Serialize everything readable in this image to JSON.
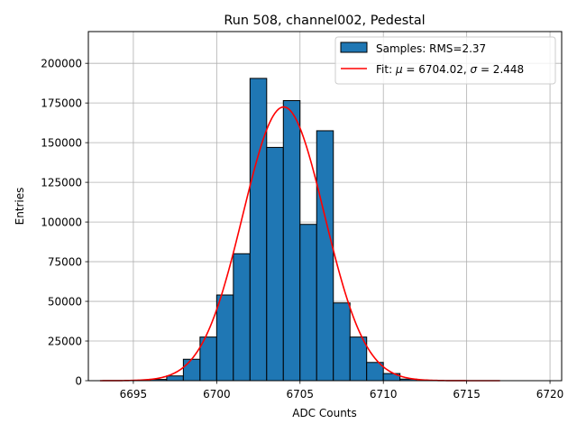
{
  "chart_data": {
    "type": "bar",
    "title": "Run 508, channel002, Pedestal",
    "xlabel": "ADC Counts",
    "ylabel": "Entries",
    "xlim": [
      6692.3,
      6720.7
    ],
    "ylim": [
      0,
      220000
    ],
    "grid": true,
    "legend_position": "top-right",
    "x_ticks": [
      6695,
      6700,
      6705,
      6710,
      6715,
      6720
    ],
    "y_ticks": [
      0,
      25000,
      50000,
      75000,
      100000,
      125000,
      150000,
      175000,
      200000
    ],
    "histogram": {
      "name": "Samples: RMS=2.37",
      "color": "#1f77b4",
      "edgecolor": "#000000",
      "bin_width": 1,
      "bin_starts": [
        6696,
        6697,
        6698,
        6699,
        6700,
        6701,
        6702,
        6703,
        6704,
        6705,
        6706,
        6707,
        6708,
        6709,
        6710,
        6711
      ],
      "counts": [
        800,
        3000,
        13500,
        27500,
        54000,
        80000,
        190500,
        147000,
        176500,
        98500,
        157500,
        49000,
        27500,
        11500,
        4500,
        1000
      ]
    },
    "fit": {
      "name_prefix": "Fit: ",
      "name_suffix": " = 6704.02, ",
      "name_suffix2": " = 2.448",
      "mu_symbol": "μ",
      "sigma_symbol": "σ",
      "color": "#ff0000",
      "mu": 6704.02,
      "sigma": 2.448,
      "amplitude": 172500,
      "x_range": [
        6693,
        6717
      ]
    }
  }
}
